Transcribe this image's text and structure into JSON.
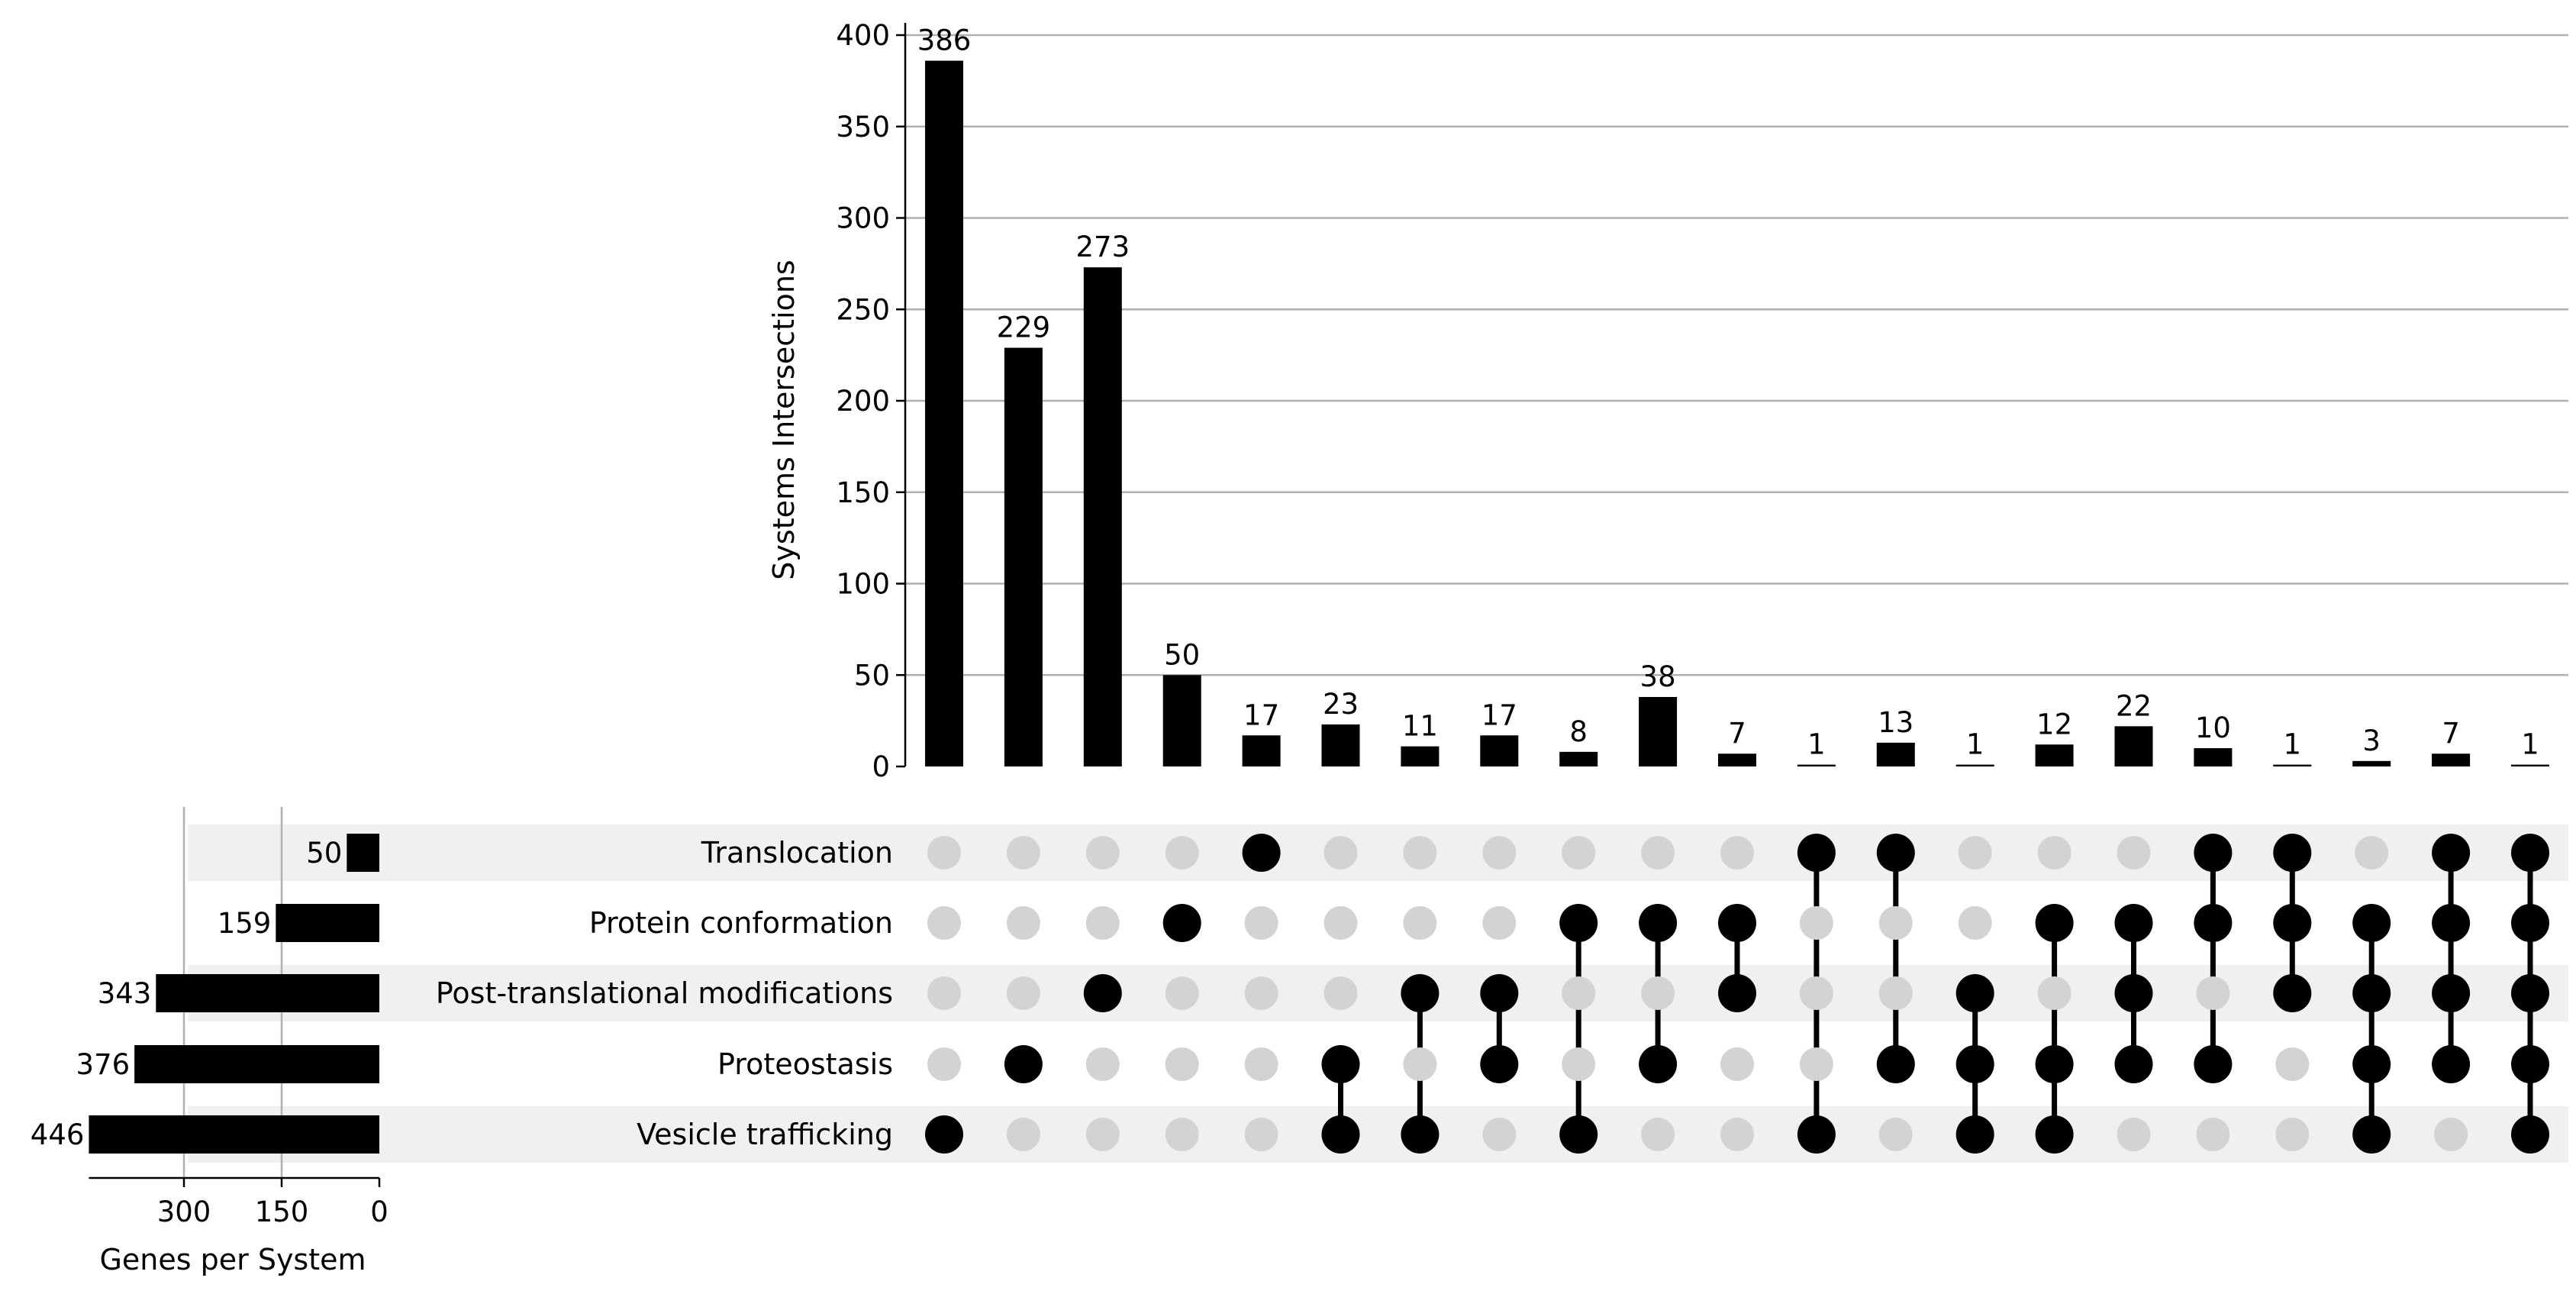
{
  "chart_data": {
    "type": "bar",
    "subtype": "upset",
    "sets": [
      "Translocation",
      "Protein conformation",
      "Post-translational modifications",
      "Proteostasis",
      "Vesicle trafficking"
    ],
    "set_sizes": [
      50,
      159,
      343,
      376,
      446
    ],
    "set_size_axis": {
      "label": "Genes per System",
      "ticks": [
        300,
        150,
        0
      ],
      "tick_labels": [
        "300",
        "150",
        "0"
      ],
      "xlim": [
        0,
        446
      ]
    },
    "intersection_axis": {
      "label": "Systems Intersections",
      "ticks": [
        0,
        50,
        100,
        150,
        200,
        250,
        300,
        350,
        400
      ],
      "tick_labels": [
        "0",
        "50",
        "100",
        "150",
        "200",
        "250",
        "300",
        "350",
        "400"
      ],
      "ylim": [
        0,
        400
      ]
    },
    "intersections": [
      {
        "members": [
          "Vesicle trafficking"
        ],
        "value": 386
      },
      {
        "members": [
          "Proteostasis"
        ],
        "value": 229
      },
      {
        "members": [
          "Post-translational modifications"
        ],
        "value": 273
      },
      {
        "members": [
          "Protein conformation"
        ],
        "value": 50
      },
      {
        "members": [
          "Translocation"
        ],
        "value": 17
      },
      {
        "members": [
          "Proteostasis",
          "Vesicle trafficking"
        ],
        "value": 23
      },
      {
        "members": [
          "Post-translational modifications",
          "Vesicle trafficking"
        ],
        "value": 11
      },
      {
        "members": [
          "Post-translational modifications",
          "Proteostasis"
        ],
        "value": 17
      },
      {
        "members": [
          "Protein conformation",
          "Vesicle trafficking"
        ],
        "value": 8
      },
      {
        "members": [
          "Protein conformation",
          "Proteostasis"
        ],
        "value": 38
      },
      {
        "members": [
          "Protein conformation",
          "Post-translational modifications"
        ],
        "value": 7
      },
      {
        "members": [
          "Translocation",
          "Vesicle trafficking"
        ],
        "value": 1
      },
      {
        "members": [
          "Translocation",
          "Proteostasis"
        ],
        "value": 13
      },
      {
        "members": [
          "Post-translational modifications",
          "Proteostasis",
          "Vesicle trafficking"
        ],
        "value": 1
      },
      {
        "members": [
          "Protein conformation",
          "Proteostasis",
          "Vesicle trafficking"
        ],
        "value": 12
      },
      {
        "members": [
          "Protein conformation",
          "Post-translational modifications",
          "Proteostasis"
        ],
        "value": 22
      },
      {
        "members": [
          "Translocation",
          "Protein conformation",
          "Proteostasis"
        ],
        "value": 10
      },
      {
        "members": [
          "Translocation",
          "Protein conformation",
          "Post-translational modifications"
        ],
        "value": 1
      },
      {
        "members": [
          "Protein conformation",
          "Post-translational modifications",
          "Proteostasis",
          "Vesicle trafficking"
        ],
        "value": 3
      },
      {
        "members": [
          "Translocation",
          "Protein conformation",
          "Post-translational modifications",
          "Proteostasis"
        ],
        "value": 7
      },
      {
        "members": [
          "Translocation",
          "Protein conformation",
          "Post-translational modifications",
          "Proteostasis",
          "Vesicle trafficking"
        ],
        "value": 1
      }
    ],
    "grid": true,
    "colors": {
      "bar": "#000000",
      "dot_active": "#000000",
      "dot_inactive": "#d3d3d3",
      "stripe": "#f0f0f0",
      "grid": "#b0b0b0"
    }
  }
}
